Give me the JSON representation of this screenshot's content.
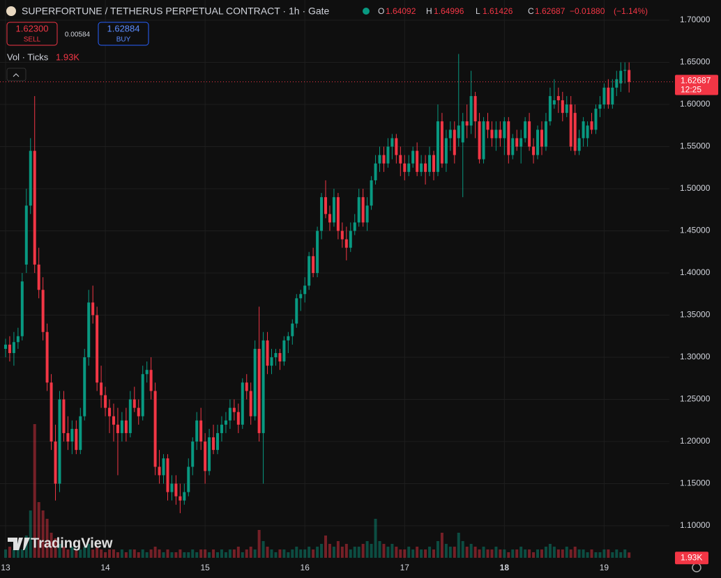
{
  "chart_data": {
    "type": "candlestick",
    "title": "SUPERFORTUNE / TETHERUS PERPETUAL CONTRACT · 1h · Gate",
    "ohlc_labels": [
      "O",
      "H",
      "L",
      "C"
    ],
    "change": {
      "value": -0.0188,
      "label": "−0.01880"
    },
    "change_pct": {
      "value": -1.14,
      "label": "(−1.14%)"
    },
    "sell_price": "1.62300",
    "sell_label": "SELL",
    "spread": "0.00584",
    "buy_price": "1.62884",
    "buy_label": "BUY",
    "volume_name": "Vol · Ticks",
    "volume_last_label": "1.93K",
    "countdown": "12:25",
    "watermark": "TradingView",
    "up_color": "#089981",
    "down_color": "#f23645",
    "grid": true,
    "ylim": [
      1.0587,
      1.724
    ],
    "yticks": [
      {
        "value": 1.1,
        "label": "1.10000"
      },
      {
        "value": 1.15,
        "label": "1.15000"
      },
      {
        "value": 1.2,
        "label": "1.20000"
      },
      {
        "value": 1.25,
        "label": "1.25000"
      },
      {
        "value": 1.3,
        "label": "1.30000"
      },
      {
        "value": 1.35,
        "label": "1.35000"
      },
      {
        "value": 1.4,
        "label": "1.40000"
      },
      {
        "value": 1.45,
        "label": "1.45000"
      },
      {
        "value": 1.5,
        "label": "1.50000"
      },
      {
        "value": 1.55,
        "label": "1.55000"
      },
      {
        "value": 1.6,
        "label": "1.60000"
      },
      {
        "value": 1.65,
        "label": "1.65000"
      },
      {
        "value": 1.7,
        "label": "1.70000"
      }
    ],
    "xlim": [
      -1.34,
      159.7
    ],
    "xticks": [
      {
        "value": 0,
        "label": "13"
      },
      {
        "value": 24,
        "label": "14"
      },
      {
        "value": 48,
        "label": "15"
      },
      {
        "value": 72,
        "label": "16"
      },
      {
        "value": 96,
        "label": "17"
      },
      {
        "value": 120,
        "label": "18",
        "bold": true
      },
      {
        "value": 144,
        "label": "19"
      }
    ],
    "candles": [
      [
        1.31,
        1.322,
        1.3,
        1.315
      ],
      [
        1.315,
        1.325,
        1.295,
        1.305
      ],
      [
        1.305,
        1.33,
        1.29,
        1.318
      ],
      [
        1.318,
        1.335,
        1.31,
        1.325
      ],
      [
        1.325,
        1.4,
        1.32,
        1.39
      ],
      [
        1.41,
        1.5,
        1.4,
        1.48
      ],
      [
        1.48,
        1.56,
        1.47,
        1.545
      ],
      [
        1.545,
        1.61,
        1.4,
        1.41
      ],
      [
        1.41,
        1.43,
        1.37,
        1.38
      ],
      [
        1.38,
        1.395,
        1.32,
        1.33
      ],
      [
        1.33,
        1.34,
        1.26,
        1.27
      ],
      [
        1.27,
        1.28,
        1.19,
        1.2
      ],
      [
        1.2,
        1.22,
        1.13,
        1.15
      ],
      [
        1.15,
        1.26,
        1.14,
        1.25
      ],
      [
        1.25,
        1.26,
        1.2,
        1.21
      ],
      [
        1.21,
        1.23,
        1.19,
        1.2
      ],
      [
        1.2,
        1.225,
        1.185,
        1.215
      ],
      [
        1.215,
        1.225,
        1.185,
        1.19
      ],
      [
        1.19,
        1.24,
        1.185,
        1.23
      ],
      [
        1.23,
        1.31,
        1.225,
        1.3
      ],
      [
        1.3,
        1.38,
        1.29,
        1.365
      ],
      [
        1.365,
        1.385,
        1.34,
        1.35
      ],
      [
        1.35,
        1.36,
        1.26,
        1.27
      ],
      [
        1.27,
        1.29,
        1.24,
        1.255
      ],
      [
        1.255,
        1.265,
        1.23,
        1.24
      ],
      [
        1.24,
        1.25,
        1.21,
        1.23
      ],
      [
        1.23,
        1.245,
        1.2,
        1.22
      ],
      [
        1.22,
        1.24,
        1.16,
        1.21
      ],
      [
        1.21,
        1.235,
        1.2,
        1.225
      ],
      [
        1.225,
        1.24,
        1.2,
        1.21
      ],
      [
        1.21,
        1.26,
        1.205,
        1.25
      ],
      [
        1.25,
        1.265,
        1.235,
        1.24
      ],
      [
        1.24,
        1.25,
        1.22,
        1.23
      ],
      [
        1.23,
        1.29,
        1.225,
        1.28
      ],
      [
        1.28,
        1.295,
        1.27,
        1.285
      ],
      [
        1.285,
        1.3,
        1.25,
        1.26
      ],
      [
        1.26,
        1.27,
        1.16,
        1.17
      ],
      [
        1.17,
        1.19,
        1.15,
        1.16
      ],
      [
        1.16,
        1.185,
        1.15,
        1.18
      ],
      [
        1.18,
        1.185,
        1.13,
        1.14
      ],
      [
        1.14,
        1.16,
        1.13,
        1.15
      ],
      [
        1.15,
        1.16,
        1.125,
        1.135
      ],
      [
        1.135,
        1.15,
        1.115,
        1.13
      ],
      [
        1.13,
        1.15,
        1.125,
        1.14
      ],
      [
        1.14,
        1.18,
        1.135,
        1.17
      ],
      [
        1.17,
        1.205,
        1.16,
        1.2
      ],
      [
        1.2,
        1.235,
        1.19,
        1.225
      ],
      [
        1.225,
        1.24,
        1.19,
        1.2
      ],
      [
        1.2,
        1.21,
        1.15,
        1.165
      ],
      [
        1.165,
        1.215,
        1.16,
        1.205
      ],
      [
        1.205,
        1.22,
        1.185,
        1.19
      ],
      [
        1.19,
        1.22,
        1.185,
        1.21
      ],
      [
        1.21,
        1.23,
        1.2,
        1.22
      ],
      [
        1.22,
        1.235,
        1.21,
        1.225
      ],
      [
        1.225,
        1.25,
        1.215,
        1.24
      ],
      [
        1.24,
        1.25,
        1.225,
        1.235
      ],
      [
        1.235,
        1.245,
        1.21,
        1.22
      ],
      [
        1.22,
        1.275,
        1.215,
        1.27
      ],
      [
        1.27,
        1.28,
        1.25,
        1.26
      ],
      [
        1.26,
        1.27,
        1.22,
        1.23
      ],
      [
        1.23,
        1.32,
        1.225,
        1.31
      ],
      [
        1.31,
        1.36,
        1.2,
        1.21
      ],
      [
        1.21,
        1.33,
        1.15,
        1.32
      ],
      [
        1.32,
        1.33,
        1.28,
        1.29
      ],
      [
        1.29,
        1.31,
        1.28,
        1.3
      ],
      [
        1.3,
        1.31,
        1.29,
        1.305
      ],
      [
        1.305,
        1.31,
        1.285,
        1.295
      ],
      [
        1.295,
        1.325,
        1.29,
        1.32
      ],
      [
        1.32,
        1.33,
        1.305,
        1.325
      ],
      [
        1.325,
        1.345,
        1.315,
        1.34
      ],
      [
        1.34,
        1.375,
        1.335,
        1.37
      ],
      [
        1.37,
        1.38,
        1.355,
        1.375
      ],
      [
        1.375,
        1.395,
        1.365,
        1.385
      ],
      [
        1.385,
        1.425,
        1.38,
        1.42
      ],
      [
        1.42,
        1.43,
        1.395,
        1.4
      ],
      [
        1.4,
        1.455,
        1.395,
        1.45
      ],
      [
        1.45,
        1.495,
        1.44,
        1.49
      ],
      [
        1.49,
        1.51,
        1.465,
        1.47
      ],
      [
        1.47,
        1.48,
        1.45,
        1.46
      ],
      [
        1.46,
        1.5,
        1.455,
        1.49
      ],
      [
        1.49,
        1.495,
        1.44,
        1.45
      ],
      [
        1.45,
        1.46,
        1.43,
        1.44
      ],
      [
        1.44,
        1.455,
        1.415,
        1.43
      ],
      [
        1.43,
        1.46,
        1.425,
        1.45
      ],
      [
        1.45,
        1.47,
        1.445,
        1.46
      ],
      [
        1.46,
        1.5,
        1.455,
        1.49
      ],
      [
        1.49,
        1.5,
        1.455,
        1.46
      ],
      [
        1.46,
        1.49,
        1.45,
        1.48
      ],
      [
        1.48,
        1.515,
        1.475,
        1.51
      ],
      [
        1.51,
        1.54,
        1.505,
        1.53
      ],
      [
        1.53,
        1.55,
        1.52,
        1.54
      ],
      [
        1.54,
        1.55,
        1.52,
        1.53
      ],
      [
        1.53,
        1.56,
        1.525,
        1.55
      ],
      [
        1.55,
        1.565,
        1.535,
        1.56
      ],
      [
        1.56,
        1.565,
        1.53,
        1.54
      ],
      [
        1.54,
        1.55,
        1.515,
        1.53
      ],
      [
        1.53,
        1.54,
        1.51,
        1.52
      ],
      [
        1.52,
        1.54,
        1.515,
        1.53
      ],
      [
        1.53,
        1.55,
        1.525,
        1.545
      ],
      [
        1.545,
        1.555,
        1.515,
        1.52
      ],
      [
        1.52,
        1.54,
        1.515,
        1.53
      ],
      [
        1.53,
        1.54,
        1.505,
        1.52
      ],
      [
        1.52,
        1.55,
        1.515,
        1.54
      ],
      [
        1.54,
        1.545,
        1.51,
        1.52
      ],
      [
        1.52,
        1.6,
        1.515,
        1.58
      ],
      [
        1.58,
        1.59,
        1.525,
        1.53
      ],
      [
        1.53,
        1.57,
        1.52,
        1.56
      ],
      [
        1.56,
        1.58,
        1.545,
        1.57
      ],
      [
        1.57,
        1.58,
        1.53,
        1.54
      ],
      [
        1.56,
        1.66,
        1.55,
        1.575
      ],
      [
        1.555,
        1.59,
        1.49,
        1.58
      ],
      [
        1.58,
        1.6,
        1.56,
        1.575
      ],
      [
        1.575,
        1.64,
        1.565,
        1.61
      ],
      [
        1.61,
        1.615,
        1.56,
        1.58
      ],
      [
        1.58,
        1.59,
        1.53,
        1.535
      ],
      [
        1.535,
        1.585,
        1.53,
        1.58
      ],
      [
        1.58,
        1.59,
        1.56,
        1.57
      ],
      [
        1.57,
        1.58,
        1.55,
        1.56
      ],
      [
        1.56,
        1.58,
        1.545,
        1.57
      ],
      [
        1.57,
        1.58,
        1.55,
        1.56
      ],
      [
        1.56,
        1.585,
        1.54,
        1.58
      ],
      [
        1.58,
        1.585,
        1.53,
        1.54
      ],
      [
        1.54,
        1.565,
        1.535,
        1.56
      ],
      [
        1.56,
        1.57,
        1.545,
        1.55
      ],
      [
        1.55,
        1.57,
        1.53,
        1.56
      ],
      [
        1.56,
        1.585,
        1.555,
        1.58
      ],
      [
        1.58,
        1.59,
        1.545,
        1.55
      ],
      [
        1.55,
        1.56,
        1.53,
        1.54
      ],
      [
        1.54,
        1.575,
        1.535,
        1.57
      ],
      [
        1.57,
        1.58,
        1.54,
        1.55
      ],
      [
        1.55,
        1.59,
        1.545,
        1.58
      ],
      [
        1.58,
        1.62,
        1.575,
        1.61
      ],
      [
        1.6,
        1.63,
        1.595,
        1.605
      ],
      [
        1.61,
        1.62,
        1.59,
        1.605
      ],
      [
        1.605,
        1.615,
        1.58,
        1.59
      ],
      [
        1.59,
        1.61,
        1.585,
        1.6
      ],
      [
        1.6,
        1.61,
        1.545,
        1.55
      ],
      [
        1.59,
        1.6,
        1.54,
        1.545
      ],
      [
        1.545,
        1.57,
        1.54,
        1.56
      ],
      [
        1.56,
        1.585,
        1.55,
        1.58
      ],
      [
        1.56,
        1.58,
        1.55,
        1.575
      ],
      [
        1.58,
        1.59,
        1.565,
        1.57
      ],
      [
        1.57,
        1.6,
        1.565,
        1.595
      ],
      [
        1.595,
        1.61,
        1.585,
        1.6
      ],
      [
        1.6,
        1.625,
        1.595,
        1.62
      ],
      [
        1.62,
        1.63,
        1.595,
        1.6
      ],
      [
        1.6,
        1.63,
        1.595,
        1.62
      ],
      [
        1.62,
        1.64,
        1.61,
        1.63
      ],
      [
        1.625,
        1.65,
        1.615,
        1.64
      ],
      [
        1.64,
        1.65,
        1.625,
        1.641
      ],
      [
        1.64092,
        1.64996,
        1.61426,
        1.62687
      ]
    ],
    "volume": [
      3,
      4,
      3,
      5,
      3,
      8,
      17,
      48,
      20,
      17,
      14,
      9,
      7,
      5,
      4,
      3,
      4,
      3,
      3,
      4,
      5,
      3,
      4,
      3,
      2,
      3,
      3,
      2,
      3,
      2,
      3,
      3,
      2,
      3,
      2,
      3,
      4,
      3,
      2,
      3,
      2,
      2,
      3,
      2,
      2,
      3,
      2,
      3,
      3,
      2,
      3,
      2,
      3,
      2,
      3,
      3,
      4,
      2,
      3,
      4,
      3,
      10,
      6,
      4,
      3,
      2,
      3,
      3,
      2,
      3,
      4,
      3,
      3,
      4,
      3,
      4,
      5,
      8,
      5,
      4,
      6,
      4,
      5,
      3,
      4,
      4,
      5,
      6,
      5,
      14,
      6,
      5,
      4,
      5,
      4,
      3,
      3,
      4,
      3,
      4,
      3,
      3,
      4,
      3,
      6,
      9,
      5,
      4,
      4,
      9,
      6,
      4,
      5,
      4,
      3,
      4,
      3,
      3,
      4,
      3,
      3,
      2,
      3,
      3,
      4,
      3,
      3,
      2,
      3,
      3,
      4,
      5,
      4,
      3,
      3,
      4,
      3,
      4,
      3,
      3,
      2,
      3,
      2,
      2,
      3,
      3,
      2,
      3,
      2,
      3,
      1.93
    ]
  }
}
